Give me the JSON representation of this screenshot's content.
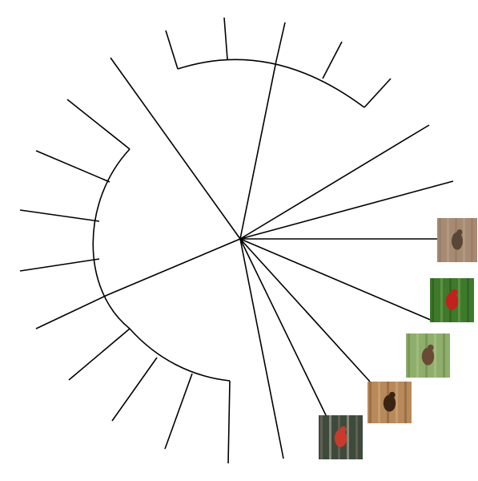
{
  "diagram": {
    "type": "circular-phylogenetic-tree",
    "line_color": "#000000",
    "background": "#ffffff",
    "leaf_count": 24,
    "image_leaves": [
      {
        "icon": "bird-on-sandy-ground-photo",
        "palette": [
          "#a68a72",
          "#8c735d",
          "#5a4636",
          "#c2ab94"
        ]
      },
      {
        "icon": "red-bird-in-green-foliage-photo",
        "palette": [
          "#3f7a2c",
          "#245018",
          "#c51f1f",
          "#7fb25a"
        ]
      },
      {
        "icon": "bird-in-tall-grass-photo",
        "palette": [
          "#8fae6c",
          "#5f7f44",
          "#6a4a34",
          "#b8cf94"
        ]
      },
      {
        "icon": "bird-in-tree-hollow-photo",
        "palette": [
          "#b8895a",
          "#7a5230",
          "#3a2414",
          "#d9b98a"
        ]
      },
      {
        "icon": "finch-on-twigs-photo",
        "palette": [
          "#3e4a3c",
          "#8a7a6a",
          "#c83a2a",
          "#d8d0c4"
        ]
      }
    ]
  }
}
